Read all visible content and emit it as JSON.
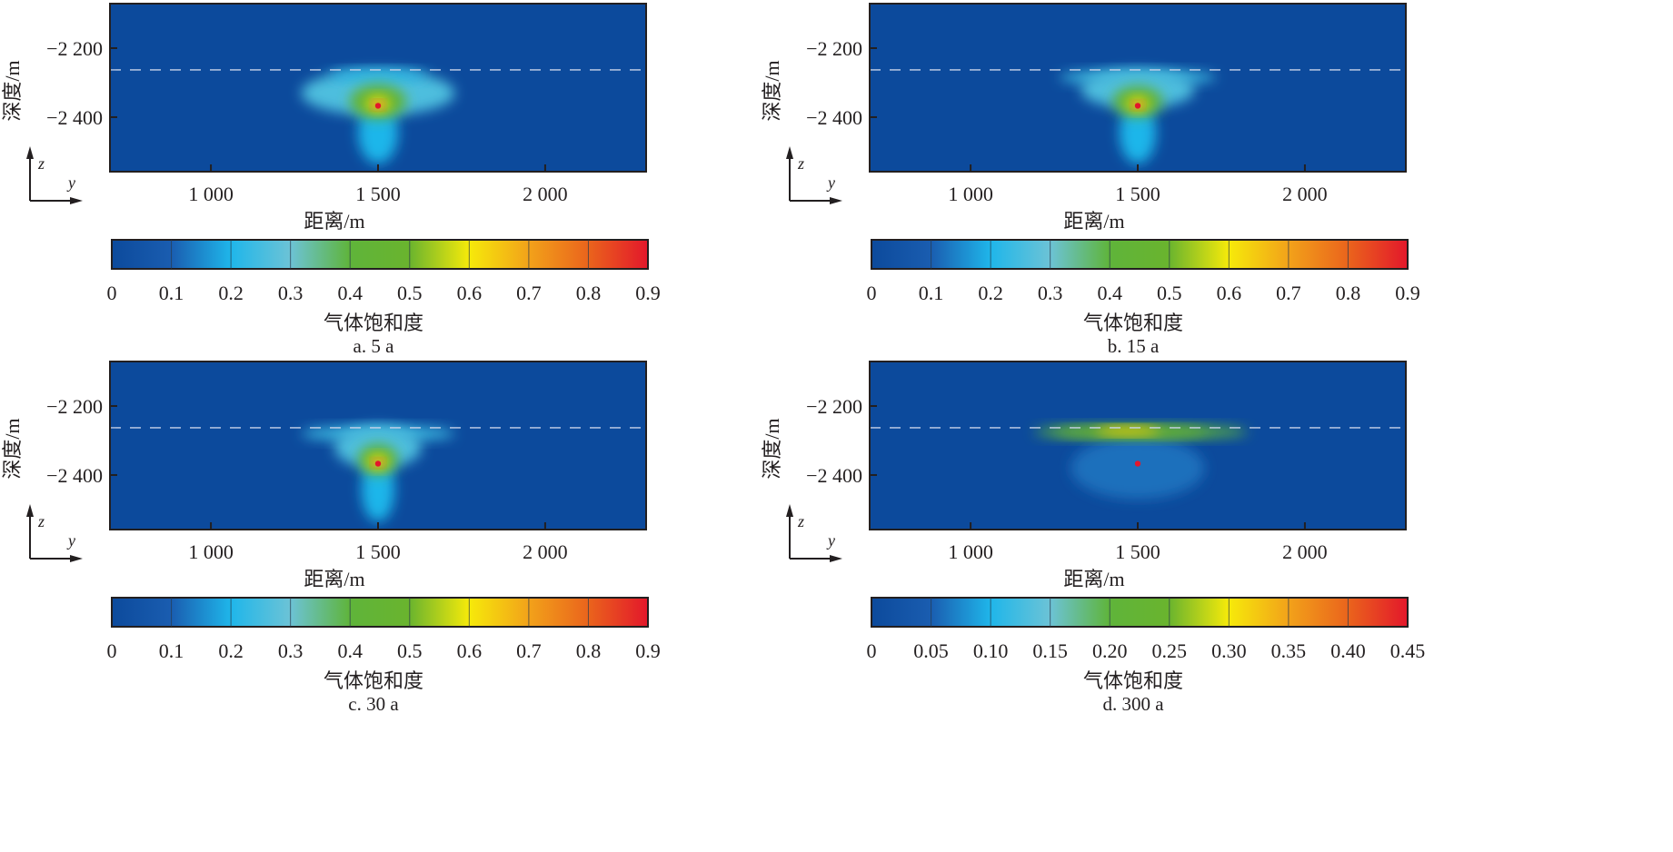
{
  "chart_data": [
    {
      "type": "heatmap",
      "caption": "a. 5 a",
      "xlabel": "距离/m",
      "ylabel": "深度/m",
      "xticks": [
        1000,
        1500,
        2000
      ],
      "xtick_labels": [
        "1 000",
        "1 500",
        "2 000"
      ],
      "yticks": [
        -2200,
        -2400
      ],
      "ytick_labels": [
        "−2 200",
        "−2 400"
      ],
      "xlim": [
        698,
        2302
      ],
      "ylim": [
        -2558,
        -2071
      ],
      "caprock_depth": -2263,
      "axes_labels": {
        "z": "z",
        "y": "y"
      },
      "colorbar": {
        "label": "气体饱和度",
        "range": [
          0,
          0.9
        ],
        "ticks": [
          "0",
          "0.1",
          "0.2",
          "0.3",
          "0.4",
          "0.5",
          "0.6",
          "0.7",
          "0.8",
          "0.9"
        ]
      },
      "plume": [
        {
          "x": 1500,
          "z": -2330,
          "rx": 230,
          "rz": 65,
          "value": 0.26
        },
        {
          "x": 1500,
          "z": -2445,
          "rx": 60,
          "rz": 90,
          "value": 0.2
        },
        {
          "x": 1500,
          "z": -2280,
          "rx": 150,
          "rz": 18,
          "value": 0.22
        },
        {
          "x": 1500,
          "z": -2355,
          "rx": 85,
          "rz": 50,
          "value": 0.42
        },
        {
          "x": 1500,
          "z": -2362,
          "rx": 35,
          "rz": 22,
          "value": 0.62
        },
        {
          "x": 1500,
          "z": -2365,
          "rx": 14,
          "rz": 10,
          "value": 0.85
        }
      ],
      "injection_point": {
        "x": 1500,
        "z": -2367
      }
    },
    {
      "type": "heatmap",
      "caption": "b. 15 a",
      "xlabel": "距离/m",
      "ylabel": "深度/m",
      "xticks": [
        1000,
        1500,
        2000
      ],
      "xtick_labels": [
        "1 000",
        "1 500",
        "2 000"
      ],
      "yticks": [
        -2200,
        -2400
      ],
      "ytick_labels": [
        "−2 200",
        "−2 400"
      ],
      "xlim": [
        698,
        2302
      ],
      "ylim": [
        -2558,
        -2071
      ],
      "caprock_depth": -2263,
      "axes_labels": {
        "z": "z",
        "y": "y"
      },
      "colorbar": {
        "label": "气体饱和度",
        "range": [
          0,
          0.9
        ],
        "ticks": [
          "0",
          "0.1",
          "0.2",
          "0.3",
          "0.4",
          "0.5",
          "0.6",
          "0.7",
          "0.8",
          "0.9"
        ]
      },
      "plume": [
        {
          "x": 1500,
          "z": -2285,
          "rx": 235,
          "rz": 22,
          "value": 0.24
        },
        {
          "x": 1500,
          "z": -2320,
          "rx": 170,
          "rz": 55,
          "value": 0.26
        },
        {
          "x": 1500,
          "z": -2445,
          "rx": 55,
          "rz": 90,
          "value": 0.2
        },
        {
          "x": 1500,
          "z": -2355,
          "rx": 75,
          "rz": 45,
          "value": 0.42
        },
        {
          "x": 1500,
          "z": -2362,
          "rx": 32,
          "rz": 20,
          "value": 0.62
        },
        {
          "x": 1500,
          "z": -2365,
          "rx": 13,
          "rz": 9,
          "value": 0.85
        }
      ],
      "injection_point": {
        "x": 1500,
        "z": -2367
      }
    },
    {
      "type": "heatmap",
      "caption": "c. 30 a",
      "xlabel": "距离/m",
      "ylabel": "深度/m",
      "xticks": [
        1000,
        1500,
        2000
      ],
      "xtick_labels": [
        "1 000",
        "1 500",
        "2 000"
      ],
      "yticks": [
        -2200,
        -2400
      ],
      "ytick_labels": [
        "−2 200",
        "−2 400"
      ],
      "xlim": [
        698,
        2302
      ],
      "ylim": [
        -2558,
        -2071
      ],
      "caprock_depth": -2263,
      "axes_labels": {
        "z": "z",
        "y": "y"
      },
      "colorbar": {
        "label": "气体饱和度",
        "range": [
          0,
          0.9
        ],
        "ticks": [
          "0",
          "0.1",
          "0.2",
          "0.3",
          "0.4",
          "0.5",
          "0.6",
          "0.7",
          "0.8",
          "0.9"
        ]
      },
      "plume": [
        {
          "x": 1500,
          "z": -2280,
          "rx": 230,
          "rz": 22,
          "value": 0.24
        },
        {
          "x": 1500,
          "z": -2320,
          "rx": 130,
          "rz": 60,
          "value": 0.26
        },
        {
          "x": 1500,
          "z": -2440,
          "rx": 50,
          "rz": 95,
          "value": 0.2
        },
        {
          "x": 1500,
          "z": -2355,
          "rx": 60,
          "rz": 45,
          "value": 0.4
        },
        {
          "x": 1500,
          "z": -2362,
          "rx": 30,
          "rz": 20,
          "value": 0.62
        },
        {
          "x": 1500,
          "z": -2365,
          "rx": 13,
          "rz": 9,
          "value": 0.85
        }
      ],
      "injection_point": {
        "x": 1500,
        "z": -2367
      }
    },
    {
      "type": "heatmap",
      "caption": "d. 300 a",
      "xlabel": "距离/m",
      "ylabel": "深度/m",
      "xticks": [
        1000,
        1500,
        2000
      ],
      "xtick_labels": [
        "1 000",
        "1 500",
        "2 000"
      ],
      "yticks": [
        -2200,
        -2400
      ],
      "ytick_labels": [
        "−2 200",
        "−2 400"
      ],
      "xlim": [
        698,
        2302
      ],
      "ylim": [
        -2558,
        -2071
      ],
      "caprock_depth": -2263,
      "axes_labels": {
        "z": "z",
        "y": "y"
      },
      "colorbar": {
        "label": "气体饱和度",
        "range": [
          0,
          0.45
        ],
        "ticks": [
          "0",
          "0.05",
          "0.10",
          "0.15",
          "0.20",
          "0.25",
          "0.30",
          "0.35",
          "0.40",
          "0.45"
        ]
      },
      "plume": [
        {
          "x": 1500,
          "z": -2380,
          "rx": 200,
          "rz": 90,
          "value": 0.06
        },
        {
          "x": 1510,
          "z": -2275,
          "rx": 320,
          "rz": 20,
          "value": 0.2
        },
        {
          "x": 1480,
          "z": -2275,
          "rx": 230,
          "rz": 14,
          "value": 0.25
        },
        {
          "x": 1470,
          "z": -2272,
          "rx": 95,
          "rz": 11,
          "value": 0.32
        }
      ],
      "injection_point": {
        "x": 1500,
        "z": -2367
      }
    }
  ]
}
